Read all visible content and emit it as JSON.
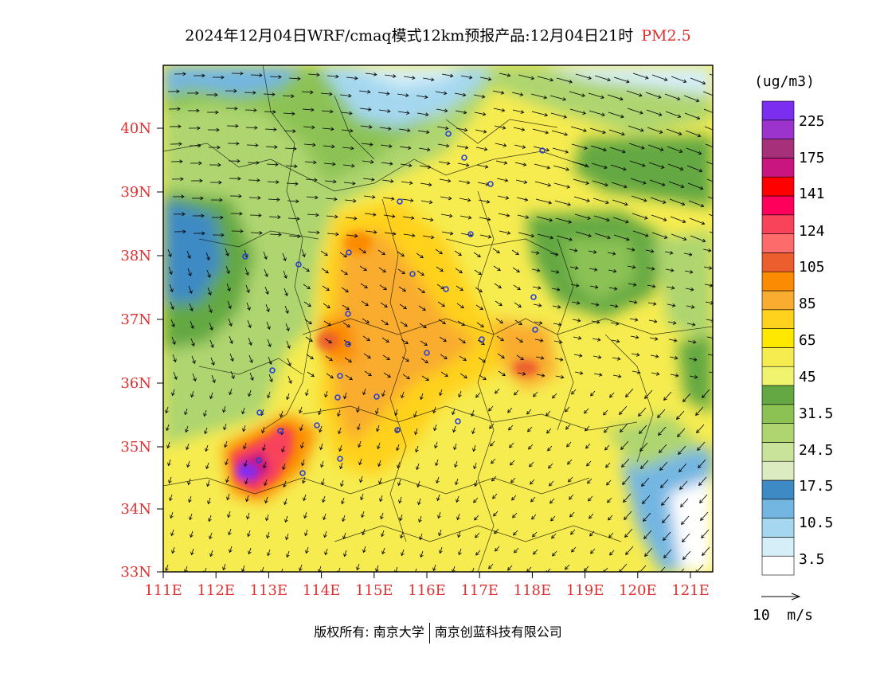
{
  "header": {
    "title": "2024年12月04日WRF/cmaq模式12km预报产品:12月04日21时",
    "product": "PM2.5"
  },
  "map": {
    "lat_ticks": [
      "40N",
      "39N",
      "38N",
      "37N",
      "36N",
      "35N",
      "34N",
      "33N"
    ],
    "lon_ticks": [
      "111E",
      "112E",
      "113E",
      "114E",
      "115E",
      "116E",
      "117E",
      "118E",
      "119E",
      "120E",
      "121E"
    ]
  },
  "legend": {
    "unit": "(ug/m3)",
    "labels": [
      "225",
      "175",
      "141",
      "124",
      "105",
      "85",
      "65",
      "45",
      "31.5",
      "24.5",
      "17.5",
      "10.5",
      "3.5"
    ],
    "colors": [
      "#ffffff",
      "#d6eef8",
      "#a5d8f0",
      "#73b6e2",
      "#3d8ac4",
      "#dcebc0",
      "#c9e49a",
      "#aed56f",
      "#8cc254",
      "#63a843",
      "#f0f36e",
      "#f6ec50",
      "#ffe800",
      "#ffd21e",
      "#f9ac2f",
      "#fb8b00",
      "#ec5e2e",
      "#fd6b6b",
      "#f8435b",
      "#fe005b",
      "#ff0000",
      "#c8157f",
      "#a6307a",
      "#9b33cc",
      "#7b2df0"
    ],
    "wind_label": "10  m/s"
  },
  "footer": {
    "copyright": "版权所有: 南京大学",
    "company": "南京创蓝科技有限公司"
  }
}
